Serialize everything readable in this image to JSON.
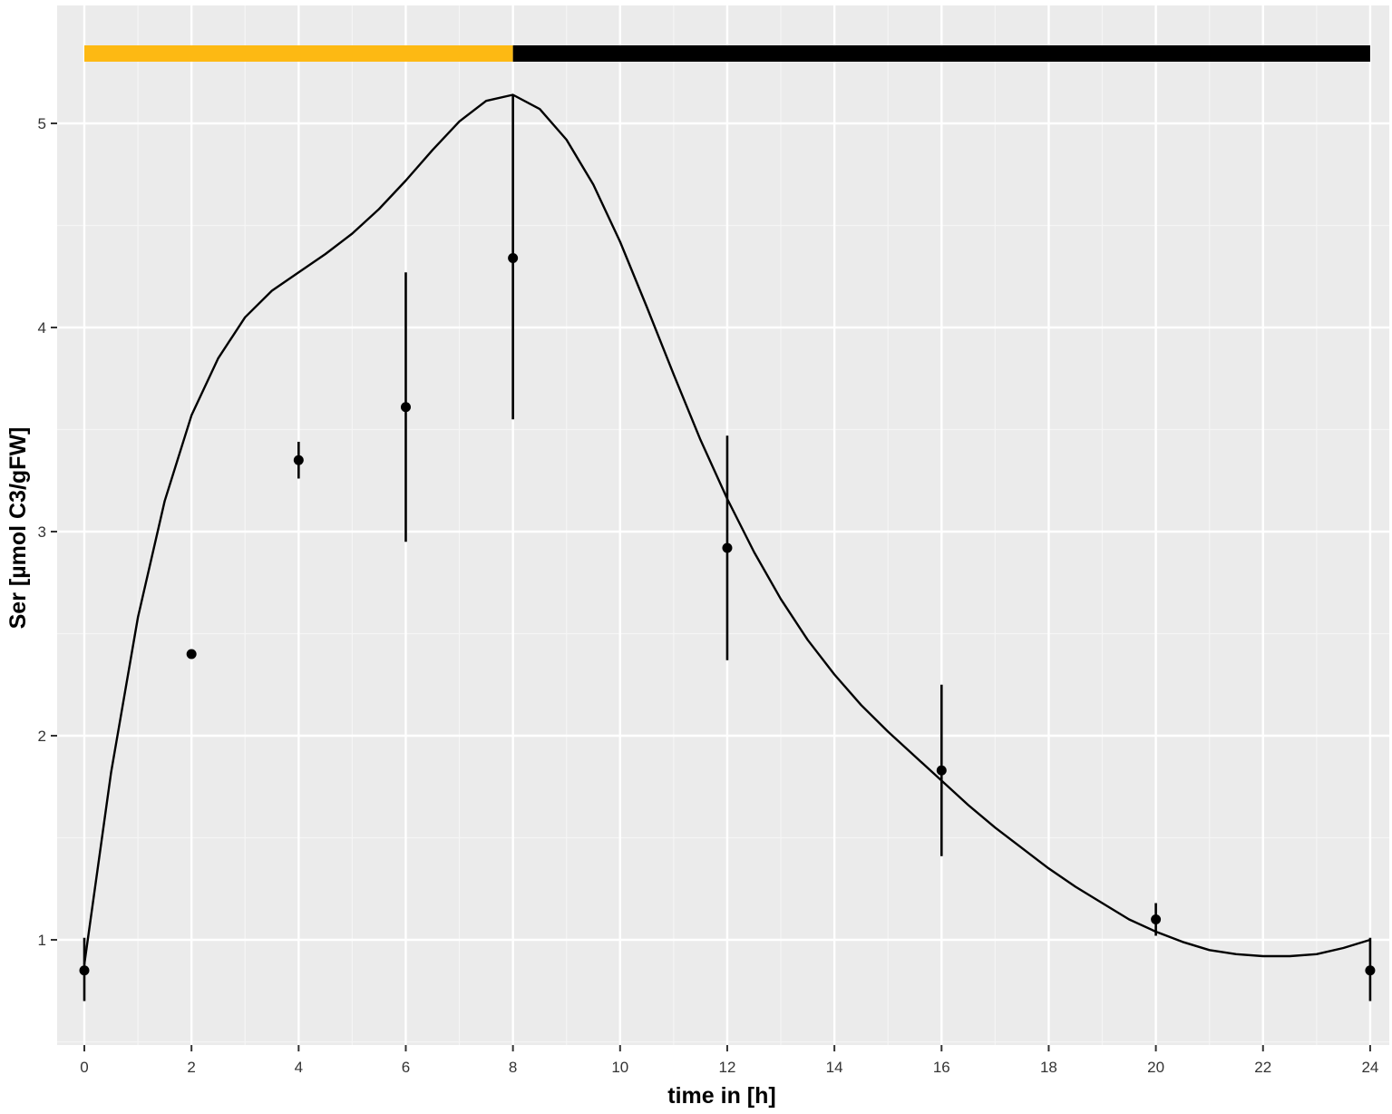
{
  "chart_data": {
    "type": "scatter",
    "title": "",
    "xlabel": "time in [h]",
    "ylabel": "Ser [µmol C3/gFW]",
    "xlim": [
      -0.5,
      24.3
    ],
    "ylim": [
      0.5,
      5.5
    ],
    "x_ticks": [
      0,
      2,
      4,
      6,
      8,
      10,
      12,
      14,
      16,
      18,
      20,
      22,
      24
    ],
    "y_ticks": [
      1,
      2,
      3,
      4,
      5
    ],
    "grid": true,
    "legend": "none",
    "colors": {
      "panel_background": "#EBEBEB",
      "grid_major": "#FFFFFF",
      "grid_minor": "#F5F5F5",
      "points": "#000000",
      "line": "#000000",
      "light_period": "#FDB913",
      "dark_period": "#000000"
    },
    "light_dark_bar": [
      {
        "period": "light",
        "start": 0,
        "end": 8
      },
      {
        "period": "dark",
        "start": 8,
        "end": 24
      }
    ],
    "series": [
      {
        "type": "scatter_errorbar",
        "points": [
          {
            "x": 0,
            "y": 0.85,
            "ymin": 0.7,
            "ymax": 1.01
          },
          {
            "x": 2,
            "y": 2.4,
            "ymin": 2.4,
            "ymax": 2.4
          },
          {
            "x": 4,
            "y": 3.35,
            "ymin": 3.26,
            "ymax": 3.44
          },
          {
            "x": 6,
            "y": 3.61,
            "ymin": 2.95,
            "ymax": 4.27
          },
          {
            "x": 8,
            "y": 4.34,
            "ymin": 3.55,
            "ymax": 5.14
          },
          {
            "x": 12,
            "y": 2.92,
            "ymin": 2.37,
            "ymax": 3.47
          },
          {
            "x": 16,
            "y": 1.83,
            "ymin": 1.41,
            "ymax": 2.25
          },
          {
            "x": 20,
            "y": 1.1,
            "ymin": 1.02,
            "ymax": 1.18
          },
          {
            "x": 24,
            "y": 0.85,
            "ymin": 0.7,
            "ymax": 1.01
          }
        ]
      },
      {
        "type": "line",
        "x": [
          0,
          0.5,
          1,
          1.5,
          2,
          2.5,
          3,
          3.5,
          4,
          4.5,
          5,
          5.5,
          6,
          6.5,
          7,
          7.5,
          8,
          8.5,
          9,
          9.5,
          10,
          10.5,
          11,
          11.5,
          12,
          12.5,
          13,
          13.5,
          14,
          14.5,
          15,
          15.5,
          16,
          16.5,
          17,
          17.5,
          18,
          18.5,
          19,
          19.5,
          20,
          20.5,
          21,
          21.5,
          22,
          22.5,
          23,
          23.5,
          24
        ],
        "y": [
          0.88,
          1.82,
          2.58,
          3.15,
          3.57,
          3.85,
          4.05,
          4.18,
          4.27,
          4.36,
          4.46,
          4.58,
          4.72,
          4.87,
          5.01,
          5.11,
          5.14,
          5.07,
          4.92,
          4.7,
          4.42,
          4.1,
          3.77,
          3.45,
          3.16,
          2.9,
          2.67,
          2.47,
          2.3,
          2.15,
          2.02,
          1.9,
          1.78,
          1.66,
          1.55,
          1.45,
          1.35,
          1.26,
          1.18,
          1.1,
          1.04,
          0.99,
          0.95,
          0.93,
          0.92,
          0.92,
          0.93,
          0.96,
          1.0
        ]
      }
    ]
  }
}
